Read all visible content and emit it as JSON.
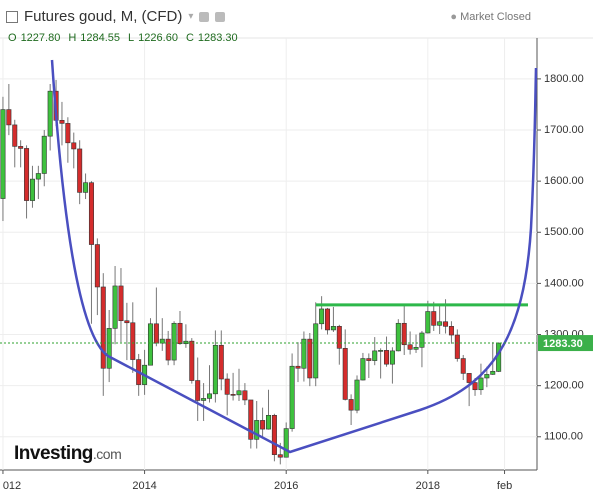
{
  "header": {
    "title": "Futures goud, M, (CFD)",
    "status": "Market Closed",
    "ohlc": [
      {
        "label": "O",
        "value": "1227.80"
      },
      {
        "label": "H",
        "value": "1284.55"
      },
      {
        "label": "L",
        "value": "1226.60"
      },
      {
        "label": "C",
        "value": "1283.30"
      }
    ]
  },
  "logo": {
    "name": "Investing",
    "suffix": ".com"
  },
  "chart_data": {
    "type": "candlestick",
    "ylim": [
      1035,
      1880
    ],
    "yticks": [
      {
        "value": 1100,
        "label": "1100.00"
      },
      {
        "value": 1200,
        "label": "1200.00"
      },
      {
        "value": 1300,
        "label": "1300.00"
      },
      {
        "value": 1400,
        "label": "1400.00"
      },
      {
        "value": 1500,
        "label": "1500.00"
      },
      {
        "value": 1600,
        "label": "1600.00"
      },
      {
        "value": 1700,
        "label": "1700.00"
      },
      {
        "value": 1800,
        "label": "1800.00"
      }
    ],
    "xlim": [
      -0.5,
      90.5
    ],
    "xticks": [
      {
        "value": 0,
        "label": "012"
      },
      {
        "value": 24,
        "label": "2014"
      },
      {
        "value": 48,
        "label": "2016"
      },
      {
        "value": 72,
        "label": "2018"
      },
      {
        "value": 85,
        "label": "feb"
      }
    ],
    "up_color": "#3ec13e",
    "down_color": "#d42c2c",
    "resistance": 1358,
    "resistance_color": "#2db84a",
    "open": [
      1566,
      1740,
      1710,
      1668,
      1664,
      1562,
      1604,
      1615,
      1688,
      1776,
      1719,
      1713,
      1675,
      1663,
      1578,
      1597,
      1476,
      1393,
      1234,
      1312,
      1395,
      1327,
      1323,
      1251,
      1202,
      1240,
      1321,
      1283,
      1291,
      1250,
      1322,
      1282,
      1287,
      1210,
      1171,
      1175,
      1184,
      1279,
      1213,
      1183,
      1182,
      1190,
      1172,
      1095,
      1132,
      1115,
      1142,
      1065,
      1060,
      1116,
      1238,
      1234,
      1291,
      1215,
      1321,
      1350,
      1309,
      1316,
      1273,
      1173,
      1152,
      1211,
      1253,
      1249,
      1268,
      1269,
      1242,
      1268,
      1322,
      1280,
      1271,
      1275,
      1303,
      1345,
      1318,
      1325,
      1316,
      1299,
      1253,
      1224,
      1206,
      1192,
      1215,
      1222,
      1227.8
    ],
    "high": [
      1765,
      1790,
      1720,
      1680,
      1670,
      1630,
      1630,
      1700,
      1790,
      1798,
      1755,
      1725,
      1695,
      1680,
      1615,
      1600,
      1488,
      1420,
      1348,
      1434,
      1430,
      1362,
      1363,
      1262,
      1270,
      1332,
      1392,
      1332,
      1307,
      1326,
      1346,
      1320,
      1293,
      1255,
      1205,
      1240,
      1308,
      1308,
      1224,
      1225,
      1233,
      1205,
      1165,
      1170,
      1157,
      1192,
      1145,
      1088,
      1128,
      1263,
      1285,
      1306,
      1303,
      1363,
      1375,
      1352,
      1354,
      1319,
      1310,
      1183,
      1220,
      1264,
      1263,
      1295,
      1273,
      1296,
      1275,
      1330,
      1358,
      1306,
      1300,
      1307,
      1366,
      1364,
      1356,
      1369,
      1326,
      1310,
      1260,
      1220,
      1215,
      1243,
      1237,
      1285,
      1284.55
    ],
    "low": [
      1522,
      1690,
      1627,
      1627,
      1527,
      1548,
      1565,
      1590,
      1660,
      1708,
      1670,
      1636,
      1625,
      1555,
      1565,
      1321,
      1338,
      1180,
      1207,
      1281,
      1285,
      1250,
      1225,
      1180,
      1182,
      1240,
      1277,
      1268,
      1240,
      1240,
      1280,
      1274,
      1204,
      1131,
      1131,
      1167,
      1167,
      1191,
      1142,
      1171,
      1170,
      1162,
      1077,
      1077,
      1097,
      1114,
      1052,
      1046,
      1062,
      1110,
      1207,
      1208,
      1199,
      1199,
      1310,
      1300,
      1305,
      1241,
      1171,
      1123,
      1146,
      1210,
      1215,
      1240,
      1214,
      1237,
      1204,
      1267,
      1260,
      1261,
      1264,
      1236,
      1302,
      1307,
      1301,
      1302,
      1282,
      1247,
      1211,
      1160,
      1180,
      1182,
      1197,
      1221,
      1226.6
    ],
    "close": [
      1740,
      1710,
      1668,
      1664,
      1562,
      1604,
      1615,
      1688,
      1776,
      1719,
      1713,
      1675,
      1663,
      1578,
      1597,
      1476,
      1393,
      1234,
      1312,
      1395,
      1327,
      1323,
      1251,
      1202,
      1240,
      1321,
      1283,
      1291,
      1250,
      1322,
      1282,
      1287,
      1210,
      1171,
      1175,
      1184,
      1279,
      1213,
      1183,
      1182,
      1190,
      1172,
      1095,
      1132,
      1115,
      1142,
      1065,
      1060,
      1116,
      1238,
      1234,
      1291,
      1215,
      1321,
      1350,
      1309,
      1316,
      1273,
      1173,
      1152,
      1211,
      1253,
      1249,
      1268,
      1269,
      1242,
      1268,
      1322,
      1280,
      1271,
      1275,
      1303,
      1345,
      1318,
      1325,
      1316,
      1299,
      1253,
      1224,
      1206,
      1192,
      1215,
      1222,
      1228,
      1283.3
    ]
  }
}
